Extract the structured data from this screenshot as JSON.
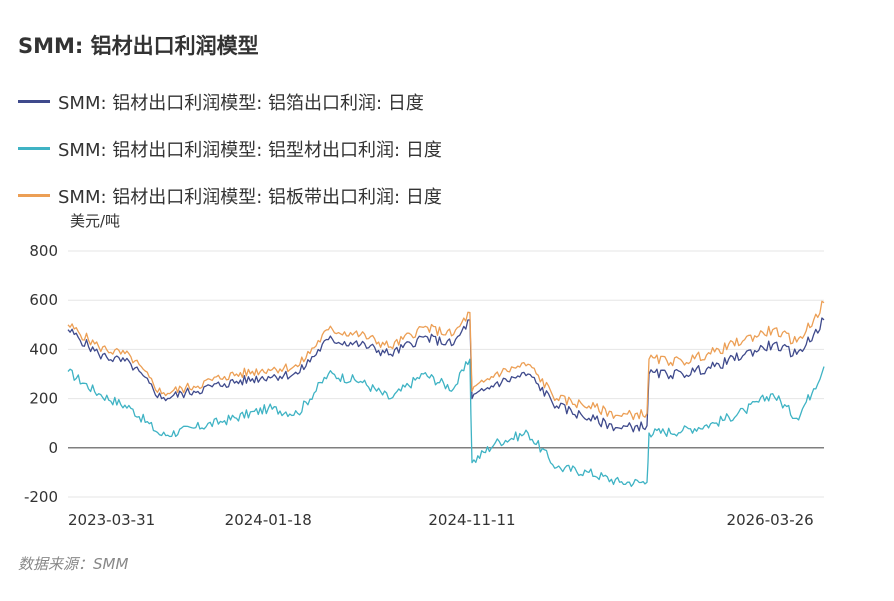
{
  "title": "SMM: 铝材出口利润模型",
  "unit": "美元/吨",
  "source": "数据来源：SMM",
  "colors": {
    "foil": "#3f4a8c",
    "profile": "#3fb3c4",
    "sheet": "#ec9f55",
    "grid": "#e6e6e6",
    "zero": "#555555"
  },
  "legend": [
    {
      "label": "SMM: 铝材出口利润模型: 铝箔出口利润: 日度"
    },
    {
      "label": "SMM: 铝材出口利润模型: 铝型材出口利润: 日度"
    },
    {
      "label": "SMM: 铝材出口利润模型: 铝板带出口利润: 日度"
    }
  ],
  "chart_data": {
    "type": "line",
    "title": "SMM: 铝材出口利润模型",
    "ylabel": "美元/吨",
    "ylim": [
      -200,
      800
    ],
    "yticks": [
      800,
      600,
      400,
      200,
      0,
      -200
    ],
    "xticks": [
      "2023-03-31",
      "2024-01-18",
      "2024-11-11",
      "2026-03-26"
    ],
    "grid": true,
    "legend_position": "top-left",
    "x": [
      "2023-03-31",
      "2023-05-15",
      "2023-07-01",
      "2023-08-15",
      "2023-10-01",
      "2023-11-15",
      "2024-01-18",
      "2024-03-01",
      "2024-04-15",
      "2024-06-01",
      "2024-07-15",
      "2024-09-01",
      "2024-10-15",
      "2024-11-08",
      "2024-11-11",
      "2024-12-15",
      "2025-02-01",
      "2025-03-15",
      "2025-05-01",
      "2025-06-15",
      "2025-07-25",
      "2025-07-28",
      "2025-09-15",
      "2025-11-01",
      "2025-12-15",
      "2026-01-25",
      "2026-03-01",
      "2026-03-26",
      "2026-04-10"
    ],
    "series": [
      {
        "name": "SMM: 铝材出口利润模型: 铝箔出口利润: 日度",
        "values": [
          480,
          380,
          340,
          200,
          230,
          260,
          290,
          300,
          440,
          420,
          380,
          450,
          420,
          520,
          200,
          260,
          300,
          170,
          120,
          80,
          90,
          300,
          300,
          330,
          380,
          420,
          380,
          460,
          520
        ]
      },
      {
        "name": "SMM: 铝材出口利润模型: 铝型材出口利润: 日度",
        "values": [
          310,
          220,
          160,
          50,
          80,
          110,
          160,
          140,
          300,
          270,
          200,
          300,
          240,
          360,
          -60,
          20,
          60,
          -80,
          -100,
          -140,
          -140,
          60,
          70,
          100,
          150,
          220,
          120,
          240,
          330
        ]
      },
      {
        "name": "SMM: 铝材出口利润模型: 铝板带出口利润: 日度",
        "values": [
          500,
          410,
          370,
          220,
          250,
          290,
          320,
          330,
          480,
          460,
          410,
          490,
          460,
          550,
          230,
          300,
          340,
          200,
          170,
          130,
          140,
          360,
          350,
          390,
          440,
          480,
          430,
          520,
          590
        ]
      }
    ]
  }
}
